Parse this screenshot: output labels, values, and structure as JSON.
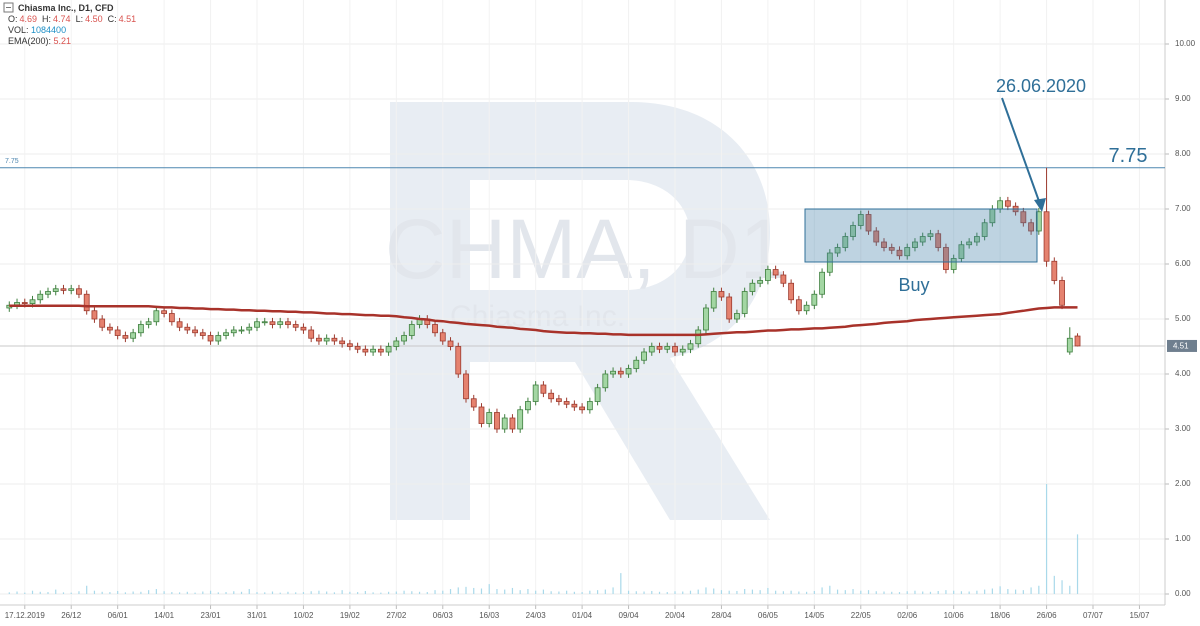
{
  "chart_data": {
    "type": "candlestick",
    "title": "Chiasma Inc., D1, CFD",
    "legend": {
      "labels": [
        "O:",
        "H:",
        "L:",
        "C:"
      ],
      "values": [
        4.69,
        4.74,
        4.5,
        4.51
      ],
      "value_labels": [
        "4.69",
        "4.74",
        "4.50",
        "4.51"
      ],
      "value_color": "#d9534f"
    },
    "watermark": {
      "symbol": "CHMA, D1",
      "name": "Chiasma Inc."
    },
    "annotations": {
      "date": "26.06.2020",
      "zone": "Buy"
    },
    "level": 7.75,
    "level_color": "#4f87b0",
    "up_color": "#a3d6a3",
    "up_border": "#3f7f3f",
    "down_color": "#e5826f",
    "down_border": "#9c3a2e",
    "open": [
      5.2,
      5.25,
      5.3,
      5.28,
      5.35,
      5.45,
      5.5,
      5.55,
      5.52,
      5.55,
      5.45,
      5.15,
      5.0,
      4.85,
      4.8,
      4.7,
      4.65,
      4.75,
      4.9,
      4.95,
      5.15,
      5.1,
      4.95,
      4.85,
      4.8,
      4.75,
      4.7,
      4.6,
      4.7,
      4.75,
      4.8,
      4.8,
      4.85,
      4.95,
      4.95,
      4.9,
      4.95,
      4.9,
      4.85,
      4.8,
      4.65,
      4.6,
      4.65,
      4.6,
      4.55,
      4.5,
      4.45,
      4.4,
      4.45,
      4.4,
      4.5,
      4.6,
      4.7,
      4.9,
      5.0,
      4.9,
      4.75,
      4.6,
      4.5,
      4.0,
      3.55,
      3.4,
      3.1,
      3.3,
      3.0,
      3.2,
      3.0,
      3.35,
      3.5,
      3.8,
      3.65,
      3.55,
      3.5,
      3.45,
      3.4,
      3.35,
      3.5,
      3.75,
      4.0,
      4.05,
      4.0,
      4.1,
      4.25,
      4.4,
      4.5,
      4.45,
      4.5,
      4.4,
      4.45,
      4.55,
      4.8,
      5.2,
      5.5,
      5.4,
      5.0,
      5.1,
      5.5,
      5.65,
      5.7,
      5.9,
      5.8,
      5.65,
      5.35,
      5.15,
      5.25,
      5.45,
      5.85,
      6.2,
      6.3,
      6.5,
      6.7,
      6.9,
      6.6,
      6.4,
      6.3,
      6.25,
      6.15,
      6.3,
      6.4,
      6.5,
      6.55,
      6.3,
      5.9,
      6.1,
      6.35,
      6.4,
      6.5,
      6.75,
      7.0,
      7.15,
      7.05,
      6.95,
      6.75,
      6.6,
      6.95,
      6.05,
      5.7,
      4.4,
      4.69
    ],
    "high": [
      5.32,
      5.37,
      5.37,
      5.42,
      5.52,
      5.57,
      5.62,
      5.62,
      5.62,
      5.62,
      5.52,
      5.22,
      5.07,
      4.92,
      4.87,
      4.77,
      4.82,
      4.97,
      5.02,
      5.22,
      5.22,
      5.17,
      5.02,
      4.92,
      4.87,
      4.82,
      4.77,
      4.77,
      4.82,
      4.87,
      4.87,
      4.92,
      5.02,
      5.02,
      5.02,
      5.02,
      5.02,
      4.97,
      4.92,
      4.87,
      4.72,
      4.72,
      4.72,
      4.67,
      4.62,
      4.57,
      4.52,
      4.52,
      4.52,
      4.57,
      4.67,
      4.77,
      4.97,
      5.07,
      5.07,
      4.97,
      4.82,
      4.67,
      4.57,
      4.07,
      3.62,
      3.47,
      3.37,
      3.37,
      3.27,
      3.27,
      3.42,
      3.57,
      3.87,
      3.87,
      3.72,
      3.62,
      3.57,
      3.52,
      3.47,
      3.57,
      3.82,
      4.07,
      4.12,
      4.12,
      4.17,
      4.32,
      4.47,
      4.57,
      4.57,
      4.57,
      4.57,
      4.52,
      4.62,
      4.87,
      5.27,
      5.57,
      5.57,
      5.47,
      5.17,
      5.57,
      5.72,
      5.77,
      5.97,
      5.97,
      5.87,
      5.72,
      5.42,
      5.32,
      5.52,
      5.92,
      6.27,
      6.37,
      6.57,
      6.77,
      6.97,
      6.97,
      6.67,
      6.47,
      6.37,
      6.32,
      6.37,
      6.47,
      6.57,
      6.62,
      6.62,
      6.37,
      6.17,
      6.42,
      6.47,
      6.57,
      6.82,
      7.07,
      7.22,
      7.22,
      7.12,
      7.02,
      6.82,
      7.02,
      7.75,
      6.12,
      5.77,
      4.85,
      4.74
    ],
    "low": [
      5.13,
      5.18,
      5.21,
      5.21,
      5.28,
      5.38,
      5.43,
      5.45,
      5.45,
      5.38,
      5.08,
      4.93,
      4.78,
      4.73,
      4.63,
      4.58,
      4.58,
      4.68,
      4.83,
      4.88,
      5.03,
      4.88,
      4.78,
      4.73,
      4.68,
      4.63,
      4.53,
      4.53,
      4.63,
      4.68,
      4.73,
      4.73,
      4.78,
      4.88,
      4.83,
      4.83,
      4.83,
      4.78,
      4.73,
      4.58,
      4.53,
      4.53,
      4.53,
      4.48,
      4.43,
      4.38,
      4.33,
      4.33,
      4.33,
      4.33,
      4.43,
      4.53,
      4.63,
      4.83,
      4.83,
      4.68,
      4.53,
      4.43,
      3.93,
      3.48,
      3.33,
      3.03,
      3.03,
      2.93,
      2.93,
      2.93,
      2.93,
      3.28,
      3.43,
      3.58,
      3.48,
      3.43,
      3.38,
      3.33,
      3.28,
      3.28,
      3.43,
      3.68,
      3.93,
      3.93,
      3.93,
      4.03,
      4.18,
      4.33,
      4.38,
      4.38,
      4.33,
      4.33,
      4.38,
      4.48,
      4.73,
      5.13,
      5.33,
      4.93,
      4.93,
      5.03,
      5.43,
      5.58,
      5.63,
      5.73,
      5.58,
      5.28,
      5.08,
      5.08,
      5.18,
      5.38,
      5.78,
      6.13,
      6.23,
      6.43,
      6.63,
      6.53,
      6.33,
      6.23,
      6.18,
      6.08,
      6.08,
      6.23,
      6.33,
      6.43,
      6.23,
      5.83,
      5.83,
      6.03,
      6.28,
      6.33,
      6.43,
      6.68,
      6.93,
      6.98,
      6.88,
      6.68,
      6.53,
      6.53,
      5.95,
      5.63,
      5.18,
      4.35,
      4.5
    ],
    "close": [
      5.25,
      5.3,
      5.28,
      5.35,
      5.45,
      5.5,
      5.55,
      5.52,
      5.55,
      5.45,
      5.15,
      5.0,
      4.85,
      4.8,
      4.7,
      4.65,
      4.75,
      4.9,
      4.95,
      5.15,
      5.1,
      4.95,
      4.85,
      4.8,
      4.75,
      4.7,
      4.6,
      4.7,
      4.75,
      4.8,
      4.8,
      4.85,
      4.95,
      4.95,
      4.9,
      4.95,
      4.9,
      4.85,
      4.8,
      4.65,
      4.6,
      4.65,
      4.6,
      4.55,
      4.5,
      4.45,
      4.4,
      4.45,
      4.4,
      4.5,
      4.6,
      4.7,
      4.9,
      5.0,
      4.9,
      4.75,
      4.6,
      4.5,
      4.0,
      3.55,
      3.4,
      3.1,
      3.3,
      3.0,
      3.2,
      3.0,
      3.35,
      3.5,
      3.8,
      3.65,
      3.55,
      3.5,
      3.45,
      3.4,
      3.35,
      3.5,
      3.75,
      4.0,
      4.05,
      4.0,
      4.1,
      4.25,
      4.4,
      4.5,
      4.45,
      4.5,
      4.4,
      4.45,
      4.55,
      4.8,
      5.2,
      5.5,
      5.4,
      5.0,
      5.1,
      5.5,
      5.65,
      5.7,
      5.9,
      5.8,
      5.65,
      5.35,
      5.15,
      5.25,
      5.45,
      5.85,
      6.2,
      6.3,
      6.5,
      6.7,
      6.9,
      6.6,
      6.4,
      6.3,
      6.25,
      6.15,
      6.3,
      6.4,
      6.5,
      6.55,
      6.3,
      5.9,
      6.1,
      6.35,
      6.4,
      6.5,
      6.75,
      7.0,
      7.15,
      7.05,
      6.95,
      6.75,
      6.6,
      6.95,
      6.05,
      5.7,
      5.25,
      4.65,
      4.51
    ],
    "ema": {
      "name": "EMA(200):",
      "color": "#a8322a",
      "values": [
        5.24,
        5.24,
        5.24,
        5.24,
        5.24,
        5.24,
        5.24,
        5.24,
        5.24,
        5.24,
        5.23,
        5.23,
        5.23,
        5.23,
        5.23,
        5.23,
        5.23,
        5.23,
        5.23,
        5.22,
        5.21,
        5.21,
        5.2,
        5.2,
        5.19,
        5.19,
        5.18,
        5.18,
        5.17,
        5.17,
        5.16,
        5.16,
        5.15,
        5.15,
        5.14,
        5.14,
        5.13,
        5.13,
        5.12,
        5.12,
        5.11,
        5.1,
        5.1,
        5.09,
        5.09,
        5.08,
        5.07,
        5.07,
        5.06,
        5.06,
        5.05,
        5.03,
        5.02,
        5.0,
        4.99,
        4.97,
        4.96,
        4.94,
        4.93,
        4.91,
        4.9,
        4.89,
        4.88,
        4.86,
        4.85,
        4.84,
        4.82,
        4.81,
        4.8,
        4.78,
        4.77,
        4.76,
        4.75,
        4.75,
        4.74,
        4.74,
        4.73,
        4.73,
        4.72,
        4.72,
        4.71,
        4.71,
        4.71,
        4.71,
        4.71,
        4.71,
        4.71,
        4.71,
        4.71,
        4.71,
        4.72,
        4.73,
        4.74,
        4.75,
        4.76,
        4.76,
        4.77,
        4.78,
        4.79,
        4.79,
        4.8,
        4.81,
        4.81,
        4.82,
        4.83,
        4.83,
        4.84,
        4.85,
        4.86,
        4.88,
        4.89,
        4.9,
        4.91,
        4.93,
        4.94,
        4.95,
        4.96,
        4.98,
        4.99,
        5.0,
        5.01,
        5.02,
        5.03,
        5.04,
        5.05,
        5.06,
        5.07,
        5.08,
        5.09,
        5.11,
        5.13,
        5.15,
        5.17,
        5.19,
        5.2,
        5.21,
        5.21,
        5.21,
        5.21
      ]
    },
    "volume": {
      "name": "VOL:",
      "color": "#a9d9ea",
      "values": [
        30000,
        45000,
        25000,
        60000,
        40000,
        35000,
        80000,
        30000,
        25000,
        50000,
        150000,
        60000,
        40000,
        35000,
        55000,
        30000,
        45000,
        40000,
        70000,
        90000,
        50000,
        35000,
        30000,
        40000,
        25000,
        45000,
        60000,
        30000,
        35000,
        50000,
        40000,
        90000,
        35000,
        30000,
        45000,
        25000,
        40000,
        30000,
        35000,
        50000,
        60000,
        45000,
        30000,
        70000,
        40000,
        35000,
        55000,
        30000,
        25000,
        40000,
        45000,
        60000,
        50000,
        40000,
        35000,
        70000,
        60000,
        90000,
        120000,
        130000,
        110000,
        100000,
        180000,
        90000,
        80000,
        110000,
        70000,
        90000,
        60000,
        80000,
        50000,
        45000,
        60000,
        40000,
        35000,
        60000,
        70000,
        80000,
        120000,
        380000,
        60000,
        50000,
        45000,
        55000,
        40000,
        35000,
        50000,
        45000,
        60000,
        80000,
        120000,
        100000,
        70000,
        60000,
        55000,
        90000,
        80000,
        70000,
        110000,
        60000,
        50000,
        60000,
        45000,
        40000,
        55000,
        120000,
        150000,
        80000,
        70000,
        90000,
        60000,
        70000,
        50000,
        45000,
        40000,
        35000,
        50000,
        60000,
        45000,
        40000,
        55000,
        70000,
        60000,
        50000,
        45000,
        60000,
        80000,
        100000,
        140000,
        90000,
        80000,
        70000,
        120000,
        150000,
        2000000,
        330000,
        250000,
        150000,
        1084400
      ]
    },
    "ylim": [
      -0.2,
      10.8
    ],
    "yticks": [
      {
        "value": 0,
        "label": "0.00"
      },
      {
        "value": 1,
        "label": "1.00"
      },
      {
        "value": 2,
        "label": "2.00"
      },
      {
        "value": 3,
        "label": "3.00"
      },
      {
        "value": 4,
        "label": "4.00"
      },
      {
        "value": 5,
        "label": "5.00"
      },
      {
        "value": 6,
        "label": "6.00"
      },
      {
        "value": 7,
        "label": "7.00"
      },
      {
        "value": 8,
        "label": "8.00"
      },
      {
        "value": 9,
        "label": "9.00"
      },
      {
        "value": 10,
        "label": "10.00"
      }
    ],
    "xlim": [
      -1.2,
      149.3
    ],
    "xticks": [
      {
        "value": 2,
        "label": "17.12.2019"
      },
      {
        "value": 8,
        "label": "26/12"
      },
      {
        "value": 14,
        "label": "06/01"
      },
      {
        "value": 20,
        "label": "14/01"
      },
      {
        "value": 26,
        "label": "23/01"
      },
      {
        "value": 32,
        "label": "31/01"
      },
      {
        "value": 38,
        "label": "10/02"
      },
      {
        "value": 44,
        "label": "19/02"
      },
      {
        "value": 50,
        "label": "27/02"
      },
      {
        "value": 56,
        "label": "06/03"
      },
      {
        "value": 62,
        "label": "16/03"
      },
      {
        "value": 68,
        "label": "24/03"
      },
      {
        "value": 74,
        "label": "01/04"
      },
      {
        "value": 80,
        "label": "09/04"
      },
      {
        "value": 86,
        "label": "20/04"
      },
      {
        "value": 92,
        "label": "28/04"
      },
      {
        "value": 98,
        "label": "06/05"
      },
      {
        "value": 104,
        "label": "14/05"
      },
      {
        "value": 110,
        "label": "22/05"
      },
      {
        "value": 116,
        "label": "02/06"
      },
      {
        "value": 122,
        "label": "10/06"
      },
      {
        "value": 128,
        "label": "18/06"
      },
      {
        "value": 134,
        "label": "26/06"
      },
      {
        "value": 140,
        "label": "07/07"
      },
      {
        "value": 146,
        "label": "15/07"
      }
    ],
    "grid": true
  }
}
